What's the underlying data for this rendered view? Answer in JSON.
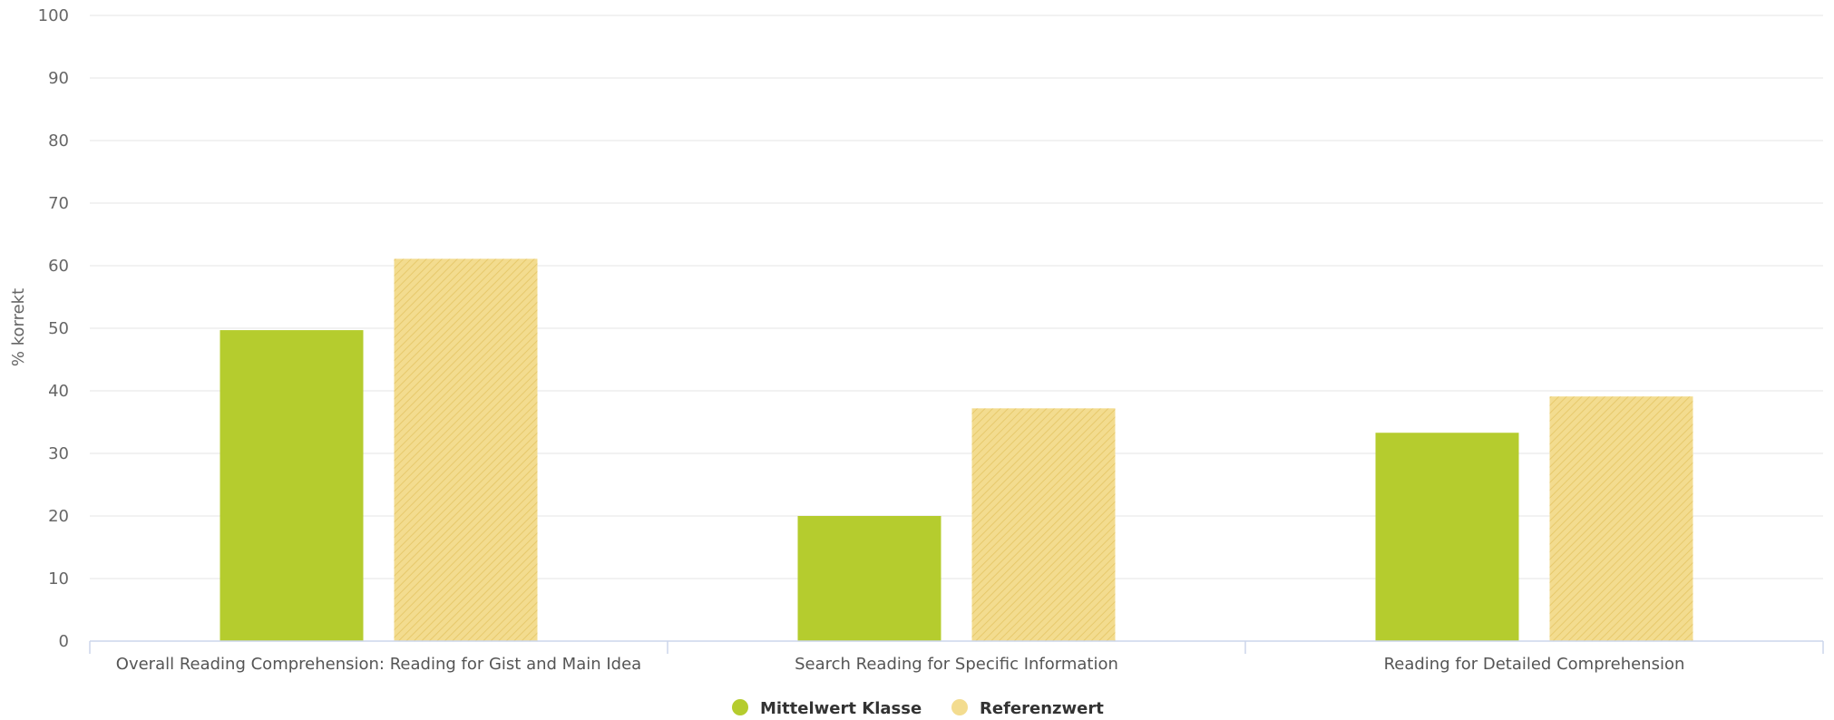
{
  "chart_data": {
    "type": "bar",
    "title": "",
    "xlabel": "",
    "ylabel": "% korrekt",
    "ylim": [
      0,
      100
    ],
    "yticks": [
      0,
      10,
      20,
      30,
      40,
      50,
      60,
      70,
      80,
      90,
      100
    ],
    "grid": true,
    "legend_position": "bottom-center",
    "categories": [
      "Overall Reading Comprehension: Reading for Gist and Main Idea",
      "Search Reading for Specific Information",
      "Reading for Detailed Comprehension"
    ],
    "series": [
      {
        "name": "Mittelwert Klasse",
        "values": [
          49.7,
          20,
          33.3
        ],
        "color": "#b5cc2e",
        "pattern": "solid"
      },
      {
        "name": "Referenzwert",
        "values": [
          61.1,
          37.2,
          39.1
        ],
        "color": "#f3dc8f",
        "pattern": "hatched"
      }
    ]
  }
}
